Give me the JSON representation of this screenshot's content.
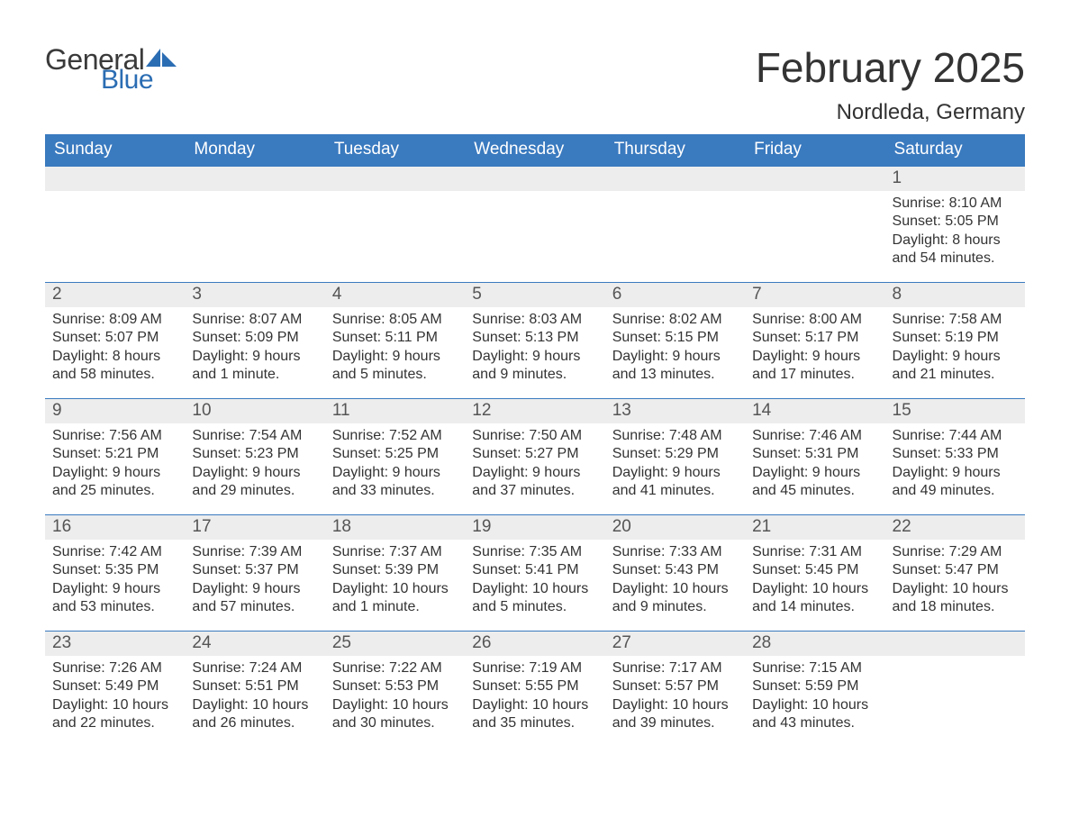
{
  "brand": {
    "name1": "General",
    "name2": "Blue",
    "color_dark": "#3a3a3a",
    "color_blue": "#2b6db3"
  },
  "title": "February 2025",
  "location": "Nordleda, Germany",
  "colors": {
    "header_bg": "#3a7abf",
    "header_text": "#ffffff",
    "daynum_bg": "#ededed",
    "daynum_text": "#555555",
    "body_text": "#333333",
    "week_border": "#3a7abf",
    "page_bg": "#ffffff"
  },
  "weekdays": [
    "Sunday",
    "Monday",
    "Tuesday",
    "Wednesday",
    "Thursday",
    "Friday",
    "Saturday"
  ],
  "weeks": [
    [
      {
        "day": null
      },
      {
        "day": null
      },
      {
        "day": null
      },
      {
        "day": null
      },
      {
        "day": null
      },
      {
        "day": null
      },
      {
        "day": 1,
        "sunrise": "8:10 AM",
        "sunset": "5:05 PM",
        "daylight": "8 hours and 54 minutes."
      }
    ],
    [
      {
        "day": 2,
        "sunrise": "8:09 AM",
        "sunset": "5:07 PM",
        "daylight": "8 hours and 58 minutes."
      },
      {
        "day": 3,
        "sunrise": "8:07 AM",
        "sunset": "5:09 PM",
        "daylight": "9 hours and 1 minute."
      },
      {
        "day": 4,
        "sunrise": "8:05 AM",
        "sunset": "5:11 PM",
        "daylight": "9 hours and 5 minutes."
      },
      {
        "day": 5,
        "sunrise": "8:03 AM",
        "sunset": "5:13 PM",
        "daylight": "9 hours and 9 minutes."
      },
      {
        "day": 6,
        "sunrise": "8:02 AM",
        "sunset": "5:15 PM",
        "daylight": "9 hours and 13 minutes."
      },
      {
        "day": 7,
        "sunrise": "8:00 AM",
        "sunset": "5:17 PM",
        "daylight": "9 hours and 17 minutes."
      },
      {
        "day": 8,
        "sunrise": "7:58 AM",
        "sunset": "5:19 PM",
        "daylight": "9 hours and 21 minutes."
      }
    ],
    [
      {
        "day": 9,
        "sunrise": "7:56 AM",
        "sunset": "5:21 PM",
        "daylight": "9 hours and 25 minutes."
      },
      {
        "day": 10,
        "sunrise": "7:54 AM",
        "sunset": "5:23 PM",
        "daylight": "9 hours and 29 minutes."
      },
      {
        "day": 11,
        "sunrise": "7:52 AM",
        "sunset": "5:25 PM",
        "daylight": "9 hours and 33 minutes."
      },
      {
        "day": 12,
        "sunrise": "7:50 AM",
        "sunset": "5:27 PM",
        "daylight": "9 hours and 37 minutes."
      },
      {
        "day": 13,
        "sunrise": "7:48 AM",
        "sunset": "5:29 PM",
        "daylight": "9 hours and 41 minutes."
      },
      {
        "day": 14,
        "sunrise": "7:46 AM",
        "sunset": "5:31 PM",
        "daylight": "9 hours and 45 minutes."
      },
      {
        "day": 15,
        "sunrise": "7:44 AM",
        "sunset": "5:33 PM",
        "daylight": "9 hours and 49 minutes."
      }
    ],
    [
      {
        "day": 16,
        "sunrise": "7:42 AM",
        "sunset": "5:35 PM",
        "daylight": "9 hours and 53 minutes."
      },
      {
        "day": 17,
        "sunrise": "7:39 AM",
        "sunset": "5:37 PM",
        "daylight": "9 hours and 57 minutes."
      },
      {
        "day": 18,
        "sunrise": "7:37 AM",
        "sunset": "5:39 PM",
        "daylight": "10 hours and 1 minute."
      },
      {
        "day": 19,
        "sunrise": "7:35 AM",
        "sunset": "5:41 PM",
        "daylight": "10 hours and 5 minutes."
      },
      {
        "day": 20,
        "sunrise": "7:33 AM",
        "sunset": "5:43 PM",
        "daylight": "10 hours and 9 minutes."
      },
      {
        "day": 21,
        "sunrise": "7:31 AM",
        "sunset": "5:45 PM",
        "daylight": "10 hours and 14 minutes."
      },
      {
        "day": 22,
        "sunrise": "7:29 AM",
        "sunset": "5:47 PM",
        "daylight": "10 hours and 18 minutes."
      }
    ],
    [
      {
        "day": 23,
        "sunrise": "7:26 AM",
        "sunset": "5:49 PM",
        "daylight": "10 hours and 22 minutes."
      },
      {
        "day": 24,
        "sunrise": "7:24 AM",
        "sunset": "5:51 PM",
        "daylight": "10 hours and 26 minutes."
      },
      {
        "day": 25,
        "sunrise": "7:22 AM",
        "sunset": "5:53 PM",
        "daylight": "10 hours and 30 minutes."
      },
      {
        "day": 26,
        "sunrise": "7:19 AM",
        "sunset": "5:55 PM",
        "daylight": "10 hours and 35 minutes."
      },
      {
        "day": 27,
        "sunrise": "7:17 AM",
        "sunset": "5:57 PM",
        "daylight": "10 hours and 39 minutes."
      },
      {
        "day": 28,
        "sunrise": "7:15 AM",
        "sunset": "5:59 PM",
        "daylight": "10 hours and 43 minutes."
      },
      {
        "day": null
      }
    ]
  ],
  "labels": {
    "sunrise": "Sunrise: ",
    "sunset": "Sunset: ",
    "daylight": "Daylight: "
  }
}
